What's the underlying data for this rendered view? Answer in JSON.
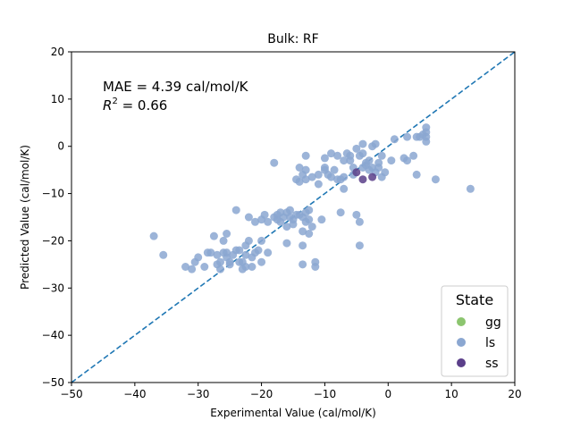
{
  "chart_data": {
    "type": "scatter",
    "title": "Bulk: RF",
    "xlabel": "Experimental Value (cal/mol/K)",
    "ylabel": "Predicted Value (cal/mol/K)",
    "xlim": [
      -50,
      20
    ],
    "ylim": [
      -50,
      20
    ],
    "xticks": [
      -50,
      -40,
      -30,
      -20,
      -10,
      0,
      10,
      20
    ],
    "yticks": [
      -50,
      -40,
      -30,
      -20,
      -10,
      0,
      10,
      20
    ],
    "grid": false,
    "annotations": {
      "mae": "MAE = 4.39 cal/mol/K",
      "r2_label": "R",
      "r2_sup": "2",
      "r2_value": " = 0.66"
    },
    "reference_line": {
      "style": "dashed",
      "color": "#1f77b4",
      "from": [
        -50,
        -50
      ],
      "to": [
        20,
        20
      ]
    },
    "legend": {
      "title": "State",
      "position": "bottom-right",
      "entries": [
        {
          "label": "gg",
          "color": "#8cc56f"
        },
        {
          "label": "ls",
          "color": "#8ba7d1"
        },
        {
          "label": "ss",
          "color": "#5b3f8a"
        }
      ]
    },
    "series": [
      {
        "name": "ls",
        "color": "#8ba7d1",
        "points": [
          [
            -37,
            -19
          ],
          [
            -35.5,
            -23
          ],
          [
            -32,
            -25.5
          ],
          [
            -31,
            -26
          ],
          [
            -30.5,
            -24.5
          ],
          [
            -30,
            -23.5
          ],
          [
            -29,
            -25.5
          ],
          [
            -28.5,
            -22.5
          ],
          [
            -28,
            -22.5
          ],
          [
            -27.5,
            -19
          ],
          [
            -27,
            -25
          ],
          [
            -27,
            -23
          ],
          [
            -26.5,
            -26
          ],
          [
            -26.5,
            -24.5
          ],
          [
            -26,
            -22.5
          ],
          [
            -26,
            -20
          ],
          [
            -25.5,
            -23.5
          ],
          [
            -25.5,
            -22.5
          ],
          [
            -25.5,
            -18.5
          ],
          [
            -25,
            -25
          ],
          [
            -25,
            -24.5
          ],
          [
            -24.5,
            -23
          ],
          [
            -24,
            -22
          ],
          [
            -24,
            -13.5
          ],
          [
            -23.5,
            -24.5
          ],
          [
            -23.5,
            -22
          ],
          [
            -23,
            -26
          ],
          [
            -23,
            -24.5
          ],
          [
            -22.5,
            -25.5
          ],
          [
            -22.5,
            -23
          ],
          [
            -22.5,
            -21
          ],
          [
            -22,
            -20
          ],
          [
            -22,
            -15
          ],
          [
            -21.5,
            -25.5
          ],
          [
            -21.5,
            -23.5
          ],
          [
            -21,
            -22.5
          ],
          [
            -21,
            -16
          ],
          [
            -20.5,
            -22
          ],
          [
            -20,
            -24.5
          ],
          [
            -20,
            -20
          ],
          [
            -20,
            -15.5
          ],
          [
            -19.5,
            -14.5
          ],
          [
            -19,
            -22.5
          ],
          [
            -19,
            -16
          ],
          [
            -18,
            -15
          ],
          [
            -18,
            -3.5
          ],
          [
            -17.5,
            -15.5
          ],
          [
            -17.5,
            -14.5
          ],
          [
            -17,
            -16
          ],
          [
            -17,
            -14
          ],
          [
            -16.5,
            -15
          ],
          [
            -16,
            -20.5
          ],
          [
            -16,
            -17
          ],
          [
            -16,
            -14
          ],
          [
            -15.5,
            -13.5
          ],
          [
            -15.5,
            -15
          ],
          [
            -15,
            -16.5
          ],
          [
            -15,
            -15.5
          ],
          [
            -14.5,
            -7
          ],
          [
            -14.5,
            -14.5
          ],
          [
            -14,
            -7.5
          ],
          [
            -14,
            -14.5
          ],
          [
            -14,
            -4.5
          ],
          [
            -13.5,
            -25
          ],
          [
            -13.5,
            -21
          ],
          [
            -13.5,
            -18
          ],
          [
            -13.5,
            -6
          ],
          [
            -13.5,
            -15
          ],
          [
            -13,
            -16
          ],
          [
            -13,
            -14
          ],
          [
            -13,
            -5
          ],
          [
            -13,
            -2
          ],
          [
            -13,
            -7
          ],
          [
            -12.5,
            -13.5
          ],
          [
            -12.5,
            -18.5
          ],
          [
            -12.5,
            -15.5
          ],
          [
            -12,
            -17
          ],
          [
            -12,
            -6.5
          ],
          [
            -11.5,
            -25.5
          ],
          [
            -11.5,
            -24.5
          ],
          [
            -11,
            -6
          ],
          [
            -11,
            -8
          ],
          [
            -10.5,
            -15.5
          ],
          [
            -10,
            -5
          ],
          [
            -10,
            -4.5
          ],
          [
            -10,
            -2.5
          ],
          [
            -9.5,
            -6
          ],
          [
            -9,
            -1.5
          ],
          [
            -9,
            -6.5
          ],
          [
            -8.5,
            -5
          ],
          [
            -8,
            -2
          ],
          [
            -8,
            -7
          ],
          [
            -7.5,
            -7
          ],
          [
            -7.5,
            -14
          ],
          [
            -7,
            -3
          ],
          [
            -7,
            -6.5
          ],
          [
            -7,
            -9
          ],
          [
            -6.5,
            -1.5
          ],
          [
            -6,
            -3
          ],
          [
            -6,
            -2
          ],
          [
            -5.5,
            -4.5
          ],
          [
            -5.5,
            -6
          ],
          [
            -5,
            -0.5
          ],
          [
            -5,
            -14.5
          ],
          [
            -4.5,
            -2
          ],
          [
            -4.5,
            -16
          ],
          [
            -4.5,
            -21
          ],
          [
            -4,
            -1.5
          ],
          [
            -4,
            0.5
          ],
          [
            -4,
            -4.5
          ],
          [
            -3.5,
            -3.5
          ],
          [
            -3.5,
            -4
          ],
          [
            -3,
            -5
          ],
          [
            -3,
            -3
          ],
          [
            -2.5,
            -4.5
          ],
          [
            -2.5,
            0
          ],
          [
            -2,
            -5.5
          ],
          [
            -2,
            0.5
          ],
          [
            -1.5,
            -4.5
          ],
          [
            -1.5,
            -3.5
          ],
          [
            -1,
            -2
          ],
          [
            -1,
            -6.5
          ],
          [
            -0.5,
            -5.5
          ],
          [
            0.5,
            -3
          ],
          [
            1,
            1.5
          ],
          [
            2.5,
            -2.5
          ],
          [
            3,
            -3
          ],
          [
            3,
            2
          ],
          [
            4,
            -2
          ],
          [
            4.5,
            2
          ],
          [
            4.5,
            -6
          ],
          [
            5,
            2
          ],
          [
            5.5,
            2.5
          ],
          [
            6,
            2
          ],
          [
            6,
            3
          ],
          [
            6,
            4
          ],
          [
            6,
            1
          ],
          [
            7.5,
            -7
          ],
          [
            13,
            -9
          ]
        ]
      },
      {
        "name": "ss",
        "color": "#5b3f8a",
        "points": [
          [
            -5,
            -5.5
          ],
          [
            -4,
            -7
          ],
          [
            -2.5,
            -6.5
          ]
        ]
      }
    ]
  }
}
